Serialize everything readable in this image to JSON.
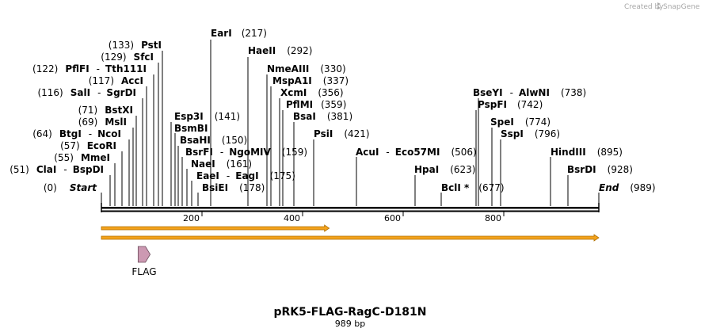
{
  "credit": {
    "text": "Created by",
    "brand": "SnapGene"
  },
  "map": {
    "total_bp": 989,
    "title": "pRK5-FLAG-RagC-D181N",
    "length_label": "989 bp",
    "start": {
      "name": "Start",
      "pos": "(0)"
    },
    "end": {
      "name": "End",
      "pos": "(989)"
    },
    "ruler_ticks": [
      "200",
      "400",
      "600",
      "800"
    ]
  },
  "sites": [
    {
      "names": [
        "EarI"
      ],
      "pos": "(217)"
    },
    {
      "names": [
        "HaeII"
      ],
      "pos": "(292)"
    },
    {
      "names": [
        "PstI"
      ],
      "pos": "(133)"
    },
    {
      "names": [
        "SfcI"
      ],
      "pos": "(129)"
    },
    {
      "names": [
        "PflFI",
        "Tth111I"
      ],
      "pos": "(122)"
    },
    {
      "names": [
        "NmeAIII"
      ],
      "pos": "(330)"
    },
    {
      "names": [
        "AccI"
      ],
      "pos": "(117)"
    },
    {
      "names": [
        "MspA1I"
      ],
      "pos": "(337)"
    },
    {
      "names": [
        "SalI",
        "SgrDI"
      ],
      "pos": "(116)"
    },
    {
      "names": [
        "XcmI"
      ],
      "pos": "(356)"
    },
    {
      "names": [
        "BseYI",
        "AlwNI"
      ],
      "pos": "(738)"
    },
    {
      "names": [
        "PflMI"
      ],
      "pos": "(359)"
    },
    {
      "names": [
        "PspFI"
      ],
      "pos": "(742)"
    },
    {
      "names": [
        "BstXI"
      ],
      "pos": "(71)"
    },
    {
      "names": [
        "Esp3I"
      ],
      "pos": "(141)"
    },
    {
      "names": [
        "BsaI"
      ],
      "pos": "(381)"
    },
    {
      "names": [
        "MslI"
      ],
      "pos": "(69)"
    },
    {
      "names": [
        "SpeI"
      ],
      "pos": "(774)"
    },
    {
      "names": [
        "BsmBI"
      ],
      "pos": ""
    },
    {
      "names": [
        "BtgI",
        "NcoI"
      ],
      "pos": "(64)"
    },
    {
      "names": [
        "PsiI"
      ],
      "pos": "(421)"
    },
    {
      "names": [
        "SspI"
      ],
      "pos": "(796)"
    },
    {
      "names": [
        "BsaHI"
      ],
      "pos": "(150)"
    },
    {
      "names": [
        "EcoRI"
      ],
      "pos": "(57)"
    },
    {
      "names": [
        "BsrFI",
        "NgoMIV"
      ],
      "pos": "(159)"
    },
    {
      "names": [
        "AcuI",
        "Eco57MI"
      ],
      "pos": "(506)"
    },
    {
      "names": [
        "HindIII"
      ],
      "pos": "(895)"
    },
    {
      "names": [
        "MmeI"
      ],
      "pos": "(55)"
    },
    {
      "names": [
        "NaeI"
      ],
      "pos": "(161)"
    },
    {
      "names": [
        "ClaI",
        "BspDI"
      ],
      "pos": "(51)"
    },
    {
      "names": [
        "EaeI",
        "EagI"
      ],
      "pos": "(175)"
    },
    {
      "names": [
        "HpaI"
      ],
      "pos": "(623)"
    },
    {
      "names": [
        "BsrDI"
      ],
      "pos": "(928)"
    },
    {
      "names": [
        "BsiEI"
      ],
      "pos": "(178)"
    },
    {
      "names": [
        "BclI *"
      ],
      "pos": "(677)"
    }
  ],
  "features": [
    {
      "name": "FLAG",
      "start_bp": 73,
      "end_bp": 97,
      "color": "#cc99b2"
    }
  ],
  "orfs": [
    {
      "start_bp": 1,
      "end_bp": 453
    },
    {
      "start_bp": 1,
      "end_bp": 989
    }
  ],
  "colors": {
    "orf_fill": "#f3a21c",
    "orf_edge": "#b07000",
    "backbone": "#000000",
    "feature": "#cc99b2"
  }
}
